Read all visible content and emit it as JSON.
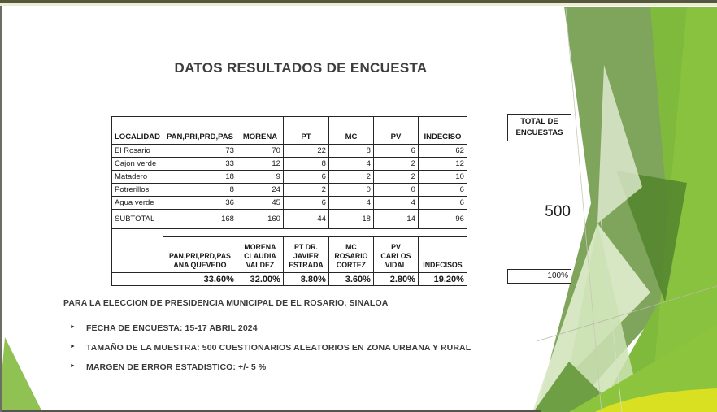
{
  "title": "DATOS RESULTADOS DE ENCUESTA",
  "table": {
    "columns": [
      "LOCALIDAD",
      "PAN,PRI,PRD,PAS",
      "MORENA",
      "PT",
      "MC",
      "PV",
      "INDECISO"
    ],
    "rows": [
      {
        "localidad": "El Rosario",
        "values": [
          73,
          70,
          22,
          8,
          6,
          62
        ]
      },
      {
        "localidad": "Cajon verde",
        "values": [
          33,
          12,
          8,
          4,
          2,
          12
        ]
      },
      {
        "localidad": "Matadero",
        "values": [
          18,
          9,
          6,
          2,
          2,
          10
        ]
      },
      {
        "localidad": "Potrerillos",
        "values": [
          8,
          24,
          2,
          0,
          0,
          6
        ]
      },
      {
        "localidad": "Agua verde",
        "values": [
          36,
          45,
          6,
          4,
          4,
          6
        ]
      }
    ],
    "subtotal": {
      "label": "SUBTOTAL",
      "values": [
        168,
        160,
        44,
        18,
        14,
        96
      ]
    },
    "candidates": [
      {
        "lines": [
          "PAN,PRI,PRD,PAS",
          "ANA QUEVEDO"
        ]
      },
      {
        "lines": [
          "MORENA",
          "CLAUDIA",
          "VALDEZ"
        ]
      },
      {
        "lines": [
          "PT DR.",
          "JAVIER",
          "ESTRADA"
        ]
      },
      {
        "lines": [
          "MC",
          "ROSARIO",
          "CORTEZ"
        ]
      },
      {
        "lines": [
          "PV CARLOS",
          "VIDAL"
        ]
      },
      {
        "lines": [
          "INDECISOS"
        ]
      }
    ],
    "percentages": [
      "33.60%",
      "32.00%",
      "8.80%",
      "3.60%",
      "2.80%",
      "19.20%"
    ],
    "totals": {
      "header": "TOTAL DE ENCUESTAS",
      "value": "500",
      "percent": "100%"
    }
  },
  "notes": {
    "subtitle": "PARA LA ELECCION DE PRESIDENCIA MUNICIPAL DE EL ROSARIO, SINALOA",
    "bullets": [
      "FECHA DE ENCUESTA: 15-17 ABRIL 2024",
      "TAMAÑO DE LA MUESTRA: 500 CUESTIONARIOS ALEATORIOS EN ZONA URBANA Y RURAL",
      "MARGEN DE ERROR ESTADISTICO:  +/- 5 %"
    ]
  },
  "colors": {
    "accent_green": "#7FBA3D",
    "sage_green": "#7FA55C",
    "pale_green": "#DCEAC9",
    "dark_green": "#55872F",
    "lime_yellow": "#D9E021",
    "top_bar_olive": "#55583E"
  }
}
